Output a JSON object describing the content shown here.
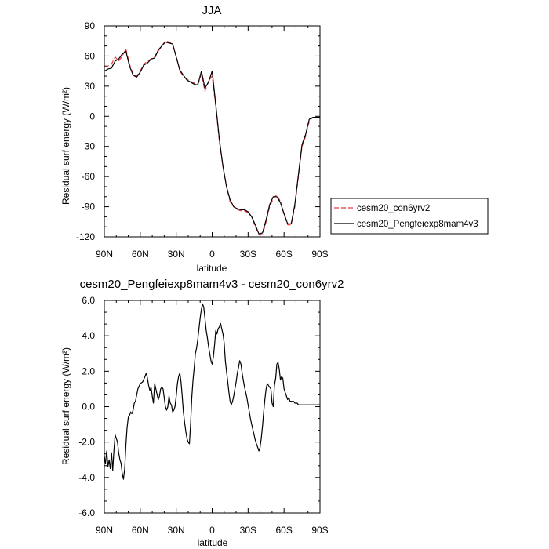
{
  "chart_data": [
    {
      "type": "line",
      "title": "JJA",
      "xlabel": "latitude",
      "ylabel": "Residual surf energy (W/m²)",
      "ylim": [
        -120,
        90
      ],
      "xlim": [
        90,
        -90
      ],
      "x_ticks": [
        {
          "value": 90,
          "label": "90N"
        },
        {
          "value": 60,
          "label": "60N"
        },
        {
          "value": 30,
          "label": "30N"
        },
        {
          "value": 0,
          "label": "0"
        },
        {
          "value": -30,
          "label": "30S"
        },
        {
          "value": -60,
          "label": "60S"
        },
        {
          "value": -90,
          "label": "90S"
        }
      ],
      "y_ticks": [
        {
          "value": 90,
          "label": "90"
        },
        {
          "value": 60,
          "label": "60"
        },
        {
          "value": 30,
          "label": "30"
        },
        {
          "value": 0,
          "label": "0"
        },
        {
          "value": -30,
          "label": "-30"
        },
        {
          "value": -60,
          "label": "-60"
        },
        {
          "value": -90,
          "label": "-90"
        },
        {
          "value": -120,
          "label": "-120"
        }
      ],
      "legend_position": "right",
      "series": [
        {
          "name": "cesm20_con6yrv2",
          "color": "#e8383d",
          "dash": "6,3",
          "x": [
            90,
            87,
            84,
            81,
            78,
            75,
            72,
            69,
            66,
            63,
            60,
            57,
            54,
            51,
            48,
            45,
            42,
            39,
            36,
            33,
            30,
            27,
            24,
            21,
            18,
            15,
            12,
            9,
            6,
            3,
            0,
            -3,
            -6,
            -9,
            -12,
            -15,
            -18,
            -21,
            -24,
            -27,
            -30,
            -33,
            -36,
            -39,
            -42,
            -45,
            -48,
            -51,
            -54,
            -57,
            -60,
            -63,
            -66,
            -69,
            -72,
            -75,
            -78,
            -81,
            -84,
            -87,
            -90
          ],
          "y": [
            49,
            50,
            52,
            59,
            55,
            60,
            67,
            52,
            42,
            40,
            45,
            52,
            55,
            57,
            60,
            65,
            70,
            75,
            74,
            72,
            60,
            45,
            40,
            37,
            35,
            33,
            32,
            42,
            25,
            35,
            40,
            10,
            -25,
            -50,
            -70,
            -85,
            -90,
            -93,
            -94,
            -94,
            -96,
            -100,
            -110,
            -117,
            -118,
            -105,
            -90,
            -82,
            -78,
            -85,
            -98,
            -108,
            -108,
            -90,
            -60,
            -30,
            -20,
            -5,
            -1,
            -1,
            -1
          ]
        },
        {
          "name": "cesm20_Pengfeiexp8mam4v3",
          "color": "#000000",
          "dash": "",
          "x": [
            90,
            87,
            84,
            81,
            78,
            75,
            72,
            69,
            66,
            63,
            60,
            57,
            54,
            51,
            48,
            45,
            42,
            39,
            36,
            33,
            30,
            27,
            24,
            21,
            18,
            15,
            12,
            9,
            6,
            3,
            0,
            -3,
            -6,
            -9,
            -12,
            -15,
            -18,
            -21,
            -24,
            -27,
            -30,
            -33,
            -36,
            -39,
            -42,
            -45,
            -48,
            -51,
            -54,
            -57,
            -60,
            -63,
            -66,
            -69,
            -72,
            -75,
            -78,
            -81,
            -84,
            -87,
            -90
          ],
          "y": [
            45,
            47,
            48,
            55,
            57,
            62,
            65,
            50,
            41,
            39,
            44,
            51,
            53,
            57,
            58,
            66,
            70,
            74,
            73,
            72,
            59,
            46,
            41,
            36,
            34,
            32,
            31,
            45,
            28,
            34,
            45,
            12,
            -23,
            -50,
            -70,
            -83,
            -90,
            -92,
            -93,
            -93,
            -95,
            -100,
            -108,
            -117,
            -116,
            -103,
            -88,
            -80,
            -80,
            -86,
            -97,
            -107,
            -107,
            -88,
            -58,
            -28,
            -18,
            -3,
            -1,
            -1,
            -1
          ]
        }
      ]
    },
    {
      "type": "line",
      "title": "cesm20_Pengfeiexp8mam4v3 - cesm20_con6yrv2",
      "xlabel": "latitude",
      "ylabel": "Residual surf energy (W/m²)",
      "ylim": [
        -6.0,
        6.0
      ],
      "xlim": [
        90,
        -90
      ],
      "x_ticks": [
        {
          "value": 90,
          "label": "90N"
        },
        {
          "value": 60,
          "label": "60N"
        },
        {
          "value": 30,
          "label": "30N"
        },
        {
          "value": 0,
          "label": "0"
        },
        {
          "value": -30,
          "label": "30S"
        },
        {
          "value": -60,
          "label": "60S"
        },
        {
          "value": -90,
          "label": "90S"
        }
      ],
      "y_ticks": [
        {
          "value": 6,
          "label": "6.0"
        },
        {
          "value": 4,
          "label": "4.0"
        },
        {
          "value": 2,
          "label": "2.0"
        },
        {
          "value": 0,
          "label": "0.0"
        },
        {
          "value": -2,
          "label": "-2.0"
        },
        {
          "value": -4,
          "label": "-4.0"
        },
        {
          "value": -6,
          "label": "-6.0"
        }
      ],
      "series": [
        {
          "color": "#000000",
          "dash": "",
          "x": [
            90,
            89,
            88,
            87,
            86,
            85,
            84,
            83,
            82,
            81,
            80,
            79,
            78,
            77,
            76,
            75,
            74,
            73,
            72,
            71,
            70,
            69,
            68,
            67,
            66,
            65,
            64,
            62,
            60,
            58,
            56,
            55,
            54,
            53,
            52,
            51,
            50,
            49,
            48,
            47,
            46,
            45,
            44,
            43,
            42,
            41,
            40,
            39,
            38,
            37,
            36,
            35,
            34,
            33,
            32,
            31,
            30,
            29,
            28,
            27,
            26,
            25,
            24,
            23,
            22,
            21,
            20,
            19,
            18,
            17,
            16,
            15,
            14,
            13,
            12,
            11,
            10,
            9,
            8,
            7,
            6,
            5,
            4,
            3,
            2,
            1,
            0,
            -1,
            -2,
            -3,
            -4,
            -5,
            -6,
            -7,
            -8,
            -9,
            -10,
            -11,
            -12,
            -13,
            -14,
            -15,
            -16,
            -17,
            -18,
            -19,
            -20,
            -21,
            -22,
            -23,
            -24,
            -25,
            -26,
            -27,
            -28,
            -29,
            -30,
            -31,
            -32,
            -33,
            -34,
            -35,
            -36,
            -37,
            -38,
            -39,
            -40,
            -41,
            -42,
            -43,
            -44,
            -45,
            -46,
            -47,
            -48,
            -49,
            -50,
            -51,
            -52,
            -53,
            -54,
            -55,
            -56,
            -57,
            -58,
            -59,
            -60,
            -61,
            -62,
            -63,
            -64,
            -65,
            -66,
            -67,
            -68,
            -69,
            -70,
            -71,
            -72,
            -73,
            -74,
            -75,
            -76,
            -77,
            -78,
            -79,
            -80,
            -81,
            -82,
            -83,
            -84,
            -85,
            -86,
            -87,
            -88,
            -89,
            -90
          ],
          "y": [
            -2.8,
            -3.2,
            -2.5,
            -3.4,
            -3.0,
            -3.5,
            -2.6,
            -3.6,
            -2.5,
            -1.6,
            -1.8,
            -2.0,
            -2.6,
            -3.0,
            -3.2,
            -3.8,
            -4.1,
            -3.5,
            -2.2,
            -1.2,
            -0.6,
            -0.5,
            -0.3,
            -0.4,
            -0.2,
            0.2,
            0.3,
            1.0,
            1.3,
            1.4,
            1.7,
            1.9,
            1.6,
            1.2,
            0.9,
            1.1,
            0.6,
            0.2,
            1.3,
            1.0,
            0.7,
            0.4,
            0.6,
            1.0,
            1.1,
            1.0,
            0.5,
            0.0,
            -0.2,
            0.0,
            0.6,
            0.2,
            0.1,
            -0.3,
            -0.2,
            0.0,
            0.6,
            1.3,
            1.7,
            1.9,
            1.4,
            0.6,
            -0.3,
            -0.9,
            -1.4,
            -1.8,
            -2.0,
            -2.1,
            -1.0,
            0.5,
            1.5,
            2.2,
            3.0,
            3.3,
            3.8,
            4.4,
            5.0,
            5.5,
            5.8,
            5.6,
            5.0,
            4.3,
            3.9,
            3.4,
            3.0,
            2.6,
            2.4,
            2.8,
            3.5,
            4.3,
            4.1,
            4.4,
            4.5,
            4.7,
            4.4,
            4.1,
            3.6,
            2.6,
            2.0,
            1.4,
            0.8,
            0.3,
            0.1,
            0.3,
            0.6,
            1.0,
            1.4,
            1.9,
            2.2,
            2.6,
            2.4,
            1.9,
            1.5,
            1.1,
            0.8,
            0.5,
            0.1,
            -0.3,
            -0.7,
            -1.0,
            -1.3,
            -1.6,
            -1.9,
            -2.1,
            -2.3,
            -2.5,
            -2.3,
            -1.8,
            -1.1,
            -0.3,
            0.4,
            1.0,
            1.3,
            1.2,
            1.1,
            1.0,
            0.2,
            0.0,
            1.2,
            1.6,
            2.4,
            2.5,
            2.1,
            1.5,
            1.7,
            1.6,
            1.0,
            0.8,
            0.6,
            0.4,
            0.5,
            0.3,
            0.3,
            0.3,
            0.3,
            0.2,
            0.2,
            0.2,
            0.1,
            0.1,
            0.1,
            0.1,
            0.1,
            0.1,
            0.1,
            0.1,
            0.1,
            0.1,
            0.1,
            0.1,
            0.1,
            0.1,
            0.1,
            0.1,
            0.1,
            0.1,
            0.1
          ]
        }
      ]
    }
  ]
}
